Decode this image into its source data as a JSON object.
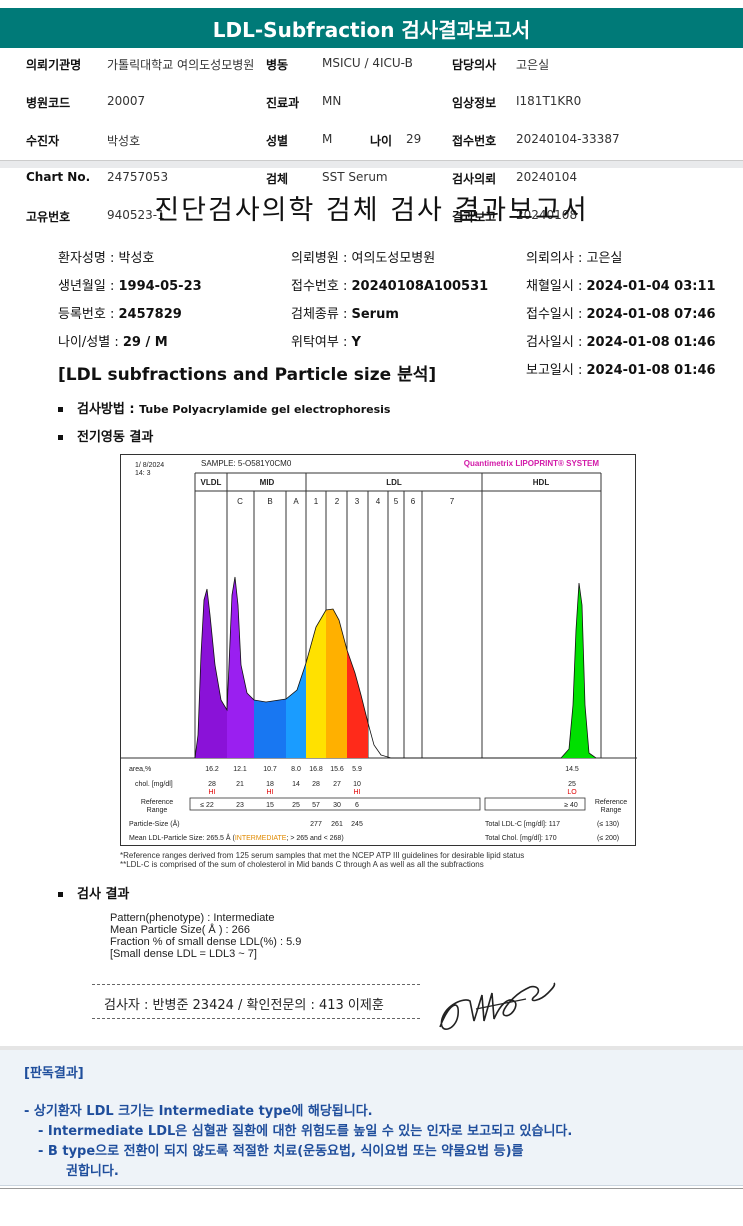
{
  "header": {
    "title": "LDL-Subfraction 검사결과보고서"
  },
  "info": {
    "rows": [
      {
        "l1": "의뢰기관명",
        "v1": "가톨릭대학교 여의도성모병원",
        "l2": "병동",
        "v2": "MSICU / 4ICU-B",
        "l3": "담당의사",
        "v3": "고은실"
      },
      {
        "l1": "병원코드",
        "v1": "20007",
        "l2": "진료과",
        "v2": "MN",
        "l3": "임상정보",
        "v3": "I181T1KR0"
      },
      {
        "l1": "수진자",
        "v1": "박성호",
        "l2": "성별",
        "v2": "M",
        "l2b": "나이",
        "v2b": "29",
        "l3": "접수번호",
        "v3": "20240104-33387"
      },
      {
        "l1": "Chart No.",
        "v1": "24757053",
        "l2": "검체",
        "v2": "SST Serum",
        "l3": "검사의뢰",
        "v3": "20240104"
      },
      {
        "l1": "고유번호",
        "v1": "940523-1",
        "l2": "",
        "v2": "",
        "l3": "결과보고",
        "v3": "20240108"
      }
    ]
  },
  "report": {
    "title": "진단검사의학 검체 검사 결과보고서",
    "patient": {
      "name_l": "환자성명 : ",
      "name_v": "박성호",
      "hosp_l": "의뢰병원 : ",
      "hosp_v": "여의도성모병원",
      "doc_l": "의뢰의사 : ",
      "doc_v": "고은실",
      "birth_l": "생년월일 : ",
      "birth_v": "1994-05-23",
      "rcv_l": "접수번호 : ",
      "rcv_v": "20240108A100531",
      "draw_l": "채혈일시 : ",
      "draw_v": "2024-01-04 03:11",
      "reg_l": "등록번호 : ",
      "reg_v": "2457829",
      "spec_l": "검체종류 : ",
      "spec_v": "Serum",
      "rcvd_l": "접수일시 : ",
      "rcvd_v": "2024-01-08 07:46",
      "age_l": "나이/성별 : ",
      "age_v": "29 / M",
      "ref_l": "위탁여부 : ",
      "ref_v": "Y",
      "test_l": "검사일시 : ",
      "test_v": "2024-01-08 01:46",
      "rep_l": "보고일시 : ",
      "rep_v": "2024-01-08 01:46"
    },
    "section_title": "[LDL subfractions and Particle size 분석]",
    "method_label": "검사방법 : ",
    "method_value": "Tube Polyacrylamide gel electrophoresis",
    "electro_label": "전기영동 결과",
    "result_label": "검사 결과"
  },
  "chart_data": {
    "type": "area",
    "date": "1/  8/2024",
    "time": "14:  3",
    "sample": "SAMPLE:   5-O581Y0CM0",
    "brand": "Quantimetrix LIPOPRINT® SYSTEM",
    "groups": [
      "VLDL",
      "MID",
      "LDL",
      "HDL"
    ],
    "bands": [
      "C",
      "B",
      "A",
      "1",
      "2",
      "3",
      "4",
      "5",
      "6",
      "7"
    ],
    "colors": [
      "#8a12d8",
      "#9a1ff0",
      "#1877f2",
      "#1a9cff",
      "#ffe100",
      "#ffb000",
      "#ff2a1a",
      "#00e000"
    ],
    "area_label": "area,%",
    "area": [
      "16.2",
      "12.1",
      "10.7",
      "8.0",
      "16.8",
      "15.6",
      "5.9",
      "14.5"
    ],
    "chol_label": "chol. [mg/dl]",
    "chol": [
      "28",
      "21",
      "18",
      "14",
      "28",
      "27",
      "10",
      "25"
    ],
    "flags": [
      "HI",
      "",
      "HI",
      "",
      "",
      "",
      "HI",
      "LO"
    ],
    "ref_label": "Reference Range",
    "ref": [
      "≤ 22",
      "23",
      "15",
      "25",
      "57",
      "30",
      "6",
      "≥ 40"
    ],
    "ref_right_label": "Reference Range",
    "psize_label": "Particle-Size (Å)",
    "psize": [
      "277",
      "261",
      "245"
    ],
    "mean_label": "Mean LDL-Particle Size:",
    "mean_value": "265.5 Å",
    "mean_type": "INTERMEDIATE",
    "mean_range": "; > 265 and < 268)",
    "total_ldl_label": "Total LDL-C [mg/dl]:",
    "total_ldl": "117",
    "total_ldl_ref": "(≤ 130)",
    "total_chol_label": "Total Chol. [mg/dl]:",
    "total_chol": "170",
    "total_chol_ref": "(≤ 200)",
    "footnote1": "*Reference ranges derived from 125 serum samples that met the NCEP ATP III guidelines for desirable lipid status",
    "footnote2": "**LDL-C is comprised of the sum of cholesterol in Mid bands C through A as well as all the subfractions"
  },
  "result": {
    "line1": "Pattern(phenotype) : Intermediate",
    "line2": "Mean Particle Size( Å ) : 266",
    "line3": "Fraction % of small dense LDL(%) : 5.9",
    "line4": "[Small dense LDL = LDL3 ~ 7]"
  },
  "signer": "검사자 : 반병준  23424  /  확인전문의 : 413  이제훈",
  "opinion": {
    "title": "[판독결과]",
    "l1": "-  상기환자 LDL 크기는 Intermediate type에 해당됩니다.",
    "l2": "-  Intermediate LDL은 심혈관 질환에 대한 위험도를 높일 수 있는 인자로 보고되고 있습니다.",
    "l3": "-  B type으로 전환이 되지 않도록 적절한 치료(운동요법, 식이요법 또는 약물요법 등)를",
    "l4": "권합니다."
  }
}
